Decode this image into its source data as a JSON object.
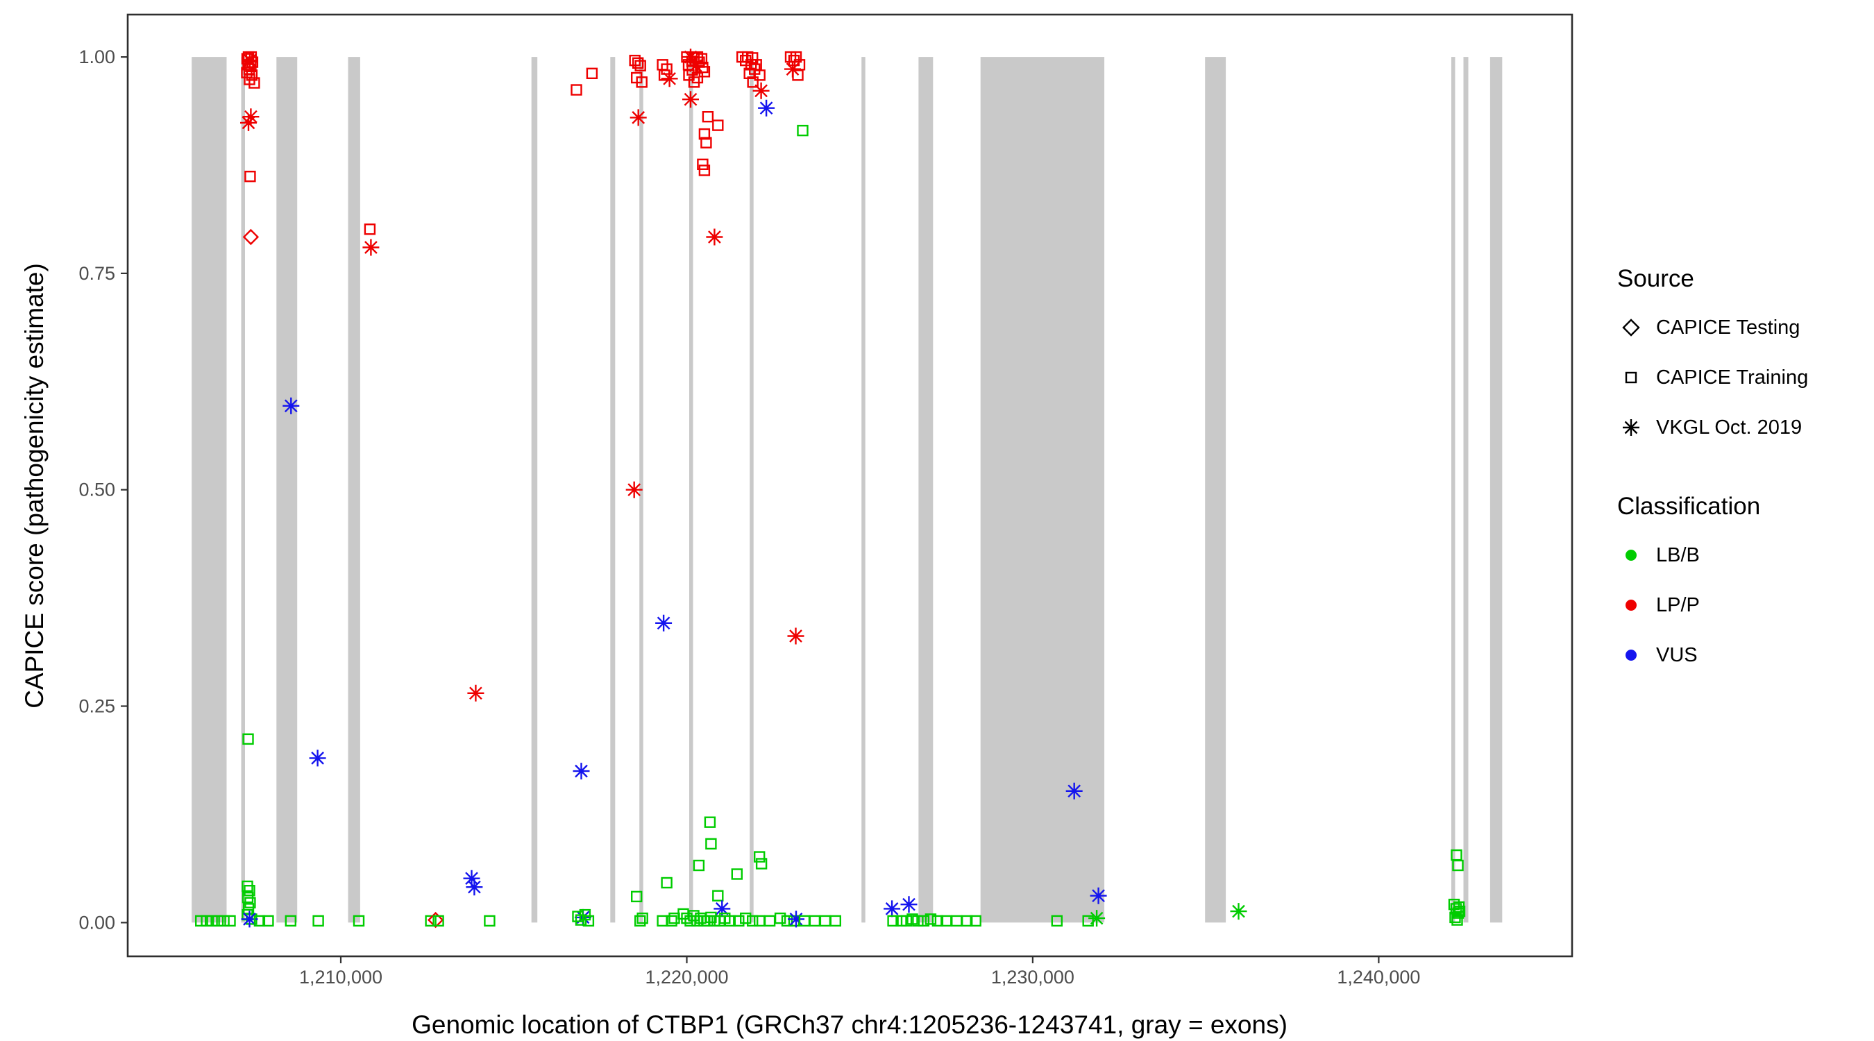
{
  "axes": {
    "x_title": "Genomic location of CTBP1 (GRCh37 chr4:1205236-1243741, gray = exons)",
    "y_title": "CAPICE score (pathogenicity estimate)"
  },
  "legend": {
    "source": {
      "title": "Source",
      "items": [
        {
          "label": "CAPICE Testing",
          "shape": "diamond"
        },
        {
          "label": "CAPICE Training",
          "shape": "square"
        },
        {
          "label": "VKGL Oct. 2019",
          "shape": "asterisk"
        }
      ]
    },
    "classification": {
      "title": "Classification",
      "items": [
        {
          "label": "LB/B",
          "color": "#00CC00"
        },
        {
          "label": "LP/P",
          "color": "#EE0000"
        },
        {
          "label": "VUS",
          "color": "#1414EE"
        }
      ]
    }
  },
  "chart_data": {
    "type": "scatter",
    "title": "",
    "xlabel": "Genomic location of CTBP1 (GRCh37 chr4:1205236-1243741, gray = exons)",
    "ylabel": "CAPICE score (pathogenicity estimate)",
    "xlim": [
      1203840,
      1245590
    ],
    "ylim": [
      -0.039,
      1.049
    ],
    "grid": false,
    "legend_position": "right",
    "panel_border_color": "#2E2E2E",
    "tick_color": "#333333",
    "tick_label_color": "#4D4D4D",
    "exon_color": "#C9C9C9",
    "x_ticks": [
      {
        "value": 1210000,
        "label": "1,210,000"
      },
      {
        "value": 1220000,
        "label": "1,220,000"
      },
      {
        "value": 1230000,
        "label": "1,230,000"
      },
      {
        "value": 1240000,
        "label": "1,240,000"
      }
    ],
    "y_ticks": [
      {
        "value": 0.0,
        "label": "0.00"
      },
      {
        "value": 0.25,
        "label": "0.25"
      },
      {
        "value": 0.5,
        "label": "0.50"
      },
      {
        "value": 0.75,
        "label": "0.75"
      },
      {
        "value": 1.0,
        "label": "1.00"
      }
    ],
    "shapes": {
      "T": "diamond",
      "R": "square",
      "V": "asterisk"
    },
    "shape_meaning": {
      "T": "CAPICE Testing",
      "R": "CAPICE Training",
      "V": "VKGL Oct. 2019"
    },
    "colors": {
      "B": "#00CC00",
      "P": "#EE0000",
      "U": "#1414EE"
    },
    "color_meaning": {
      "B": "LB/B",
      "P": "LP/P",
      "U": "VUS"
    },
    "exons": [
      [
        1205690,
        1206700
      ],
      [
        1207120,
        1207230
      ],
      [
        1208140,
        1208740
      ],
      [
        1210210,
        1210560
      ],
      [
        1215510,
        1215680
      ],
      [
        1217790,
        1217930
      ],
      [
        1218630,
        1218740
      ],
      [
        1220070,
        1220180
      ],
      [
        1221820,
        1221930
      ],
      [
        1225050,
        1225160
      ],
      [
        1226700,
        1227120
      ],
      [
        1228490,
        1232070
      ],
      [
        1234980,
        1235580
      ],
      [
        1242100,
        1242210
      ],
      [
        1242450,
        1242590
      ],
      [
        1243220,
        1243570
      ]
    ],
    "points": [
      [
        1207330,
        1.0,
        "R",
        "P"
      ],
      [
        1207410,
        1.0,
        "R",
        "P"
      ],
      [
        1207290,
        0.998,
        "R",
        "P"
      ],
      [
        1207370,
        0.996,
        "V",
        "P"
      ],
      [
        1207450,
        0.994,
        "R",
        "P"
      ],
      [
        1207320,
        0.991,
        "R",
        "P"
      ],
      [
        1207400,
        0.989,
        "R",
        "P"
      ],
      [
        1207350,
        0.986,
        "R",
        "P"
      ],
      [
        1207280,
        0.982,
        "R",
        "P"
      ],
      [
        1207430,
        0.979,
        "R",
        "P"
      ],
      [
        1207360,
        0.974,
        "R",
        "P"
      ],
      [
        1207500,
        0.97,
        "R",
        "P"
      ],
      [
        1207400,
        0.931,
        "V",
        "P"
      ],
      [
        1207330,
        0.924,
        "V",
        "P"
      ],
      [
        1207380,
        0.862,
        "R",
        "P"
      ],
      [
        1207400,
        0.792,
        "T",
        "P"
      ],
      [
        1207320,
        0.212,
        "R",
        "B"
      ],
      [
        1207300,
        0.042,
        "R",
        "B"
      ],
      [
        1207360,
        0.037,
        "R",
        "B"
      ],
      [
        1207310,
        0.029,
        "R",
        "B"
      ],
      [
        1207380,
        0.023,
        "R",
        "B"
      ],
      [
        1207330,
        0.016,
        "R",
        "B"
      ],
      [
        1207300,
        0.009,
        "R",
        "B"
      ],
      [
        1207420,
        0.004,
        "R",
        "B"
      ],
      [
        1207360,
        0.004,
        "V",
        "U"
      ],
      [
        1205950,
        0.002,
        "R",
        "B"
      ],
      [
        1206120,
        0.002,
        "R",
        "B"
      ],
      [
        1206280,
        0.002,
        "R",
        "B"
      ],
      [
        1206450,
        0.002,
        "R",
        "B"
      ],
      [
        1206620,
        0.002,
        "R",
        "B"
      ],
      [
        1206800,
        0.002,
        "R",
        "B"
      ],
      [
        1207650,
        0.002,
        "R",
        "B"
      ],
      [
        1207900,
        0.002,
        "R",
        "B"
      ],
      [
        1208550,
        0.002,
        "R",
        "B"
      ],
      [
        1209350,
        0.002,
        "R",
        "B"
      ],
      [
        1210520,
        0.002,
        "R",
        "B"
      ],
      [
        1208560,
        0.597,
        "V",
        "U"
      ],
      [
        1209330,
        0.19,
        "V",
        "U"
      ],
      [
        1210840,
        0.801,
        "R",
        "P"
      ],
      [
        1210870,
        0.78,
        "V",
        "P"
      ],
      [
        1212600,
        0.002,
        "R",
        "B"
      ],
      [
        1212740,
        0.003,
        "T",
        "P"
      ],
      [
        1212820,
        0.002,
        "R",
        "B"
      ],
      [
        1214300,
        0.002,
        "R",
        "B"
      ],
      [
        1213780,
        0.051,
        "V",
        "U"
      ],
      [
        1213860,
        0.041,
        "V",
        "U"
      ],
      [
        1213900,
        0.265,
        "V",
        "P"
      ],
      [
        1216810,
        0.962,
        "R",
        "P"
      ],
      [
        1217260,
        0.981,
        "R",
        "P"
      ],
      [
        1216950,
        0.175,
        "V",
        "U"
      ],
      [
        1217000,
        0.006,
        "V",
        "U"
      ],
      [
        1216850,
        0.007,
        "R",
        "B"
      ],
      [
        1216940,
        0.003,
        "R",
        "B"
      ],
      [
        1217060,
        0.009,
        "R",
        "B"
      ],
      [
        1217160,
        0.002,
        "R",
        "B"
      ],
      [
        1218500,
        0.996,
        "R",
        "P"
      ],
      [
        1218590,
        0.993,
        "R",
        "P"
      ],
      [
        1218660,
        0.99,
        "R",
        "P"
      ],
      [
        1218550,
        0.976,
        "R",
        "P"
      ],
      [
        1218700,
        0.971,
        "R",
        "P"
      ],
      [
        1218600,
        0.93,
        "V",
        "P"
      ],
      [
        1218480,
        0.5,
        "V",
        "P"
      ],
      [
        1218550,
        0.03,
        "R",
        "B"
      ],
      [
        1218650,
        0.002,
        "R",
        "B"
      ],
      [
        1218720,
        0.005,
        "R",
        "B"
      ],
      [
        1219300,
        0.991,
        "R",
        "P"
      ],
      [
        1219420,
        0.986,
        "R",
        "P"
      ],
      [
        1219350,
        0.979,
        "R",
        "P"
      ],
      [
        1219500,
        0.975,
        "V",
        "P"
      ],
      [
        1219330,
        0.346,
        "V",
        "U"
      ],
      [
        1219420,
        0.046,
        "R",
        "B"
      ],
      [
        1219300,
        0.002,
        "R",
        "B"
      ],
      [
        1219560,
        0.002,
        "R",
        "B"
      ],
      [
        1219640,
        0.005,
        "R",
        "B"
      ],
      [
        1220000,
        1.0,
        "R",
        "P"
      ],
      [
        1220110,
        1.0,
        "V",
        "P"
      ],
      [
        1220210,
        0.999,
        "R",
        "P"
      ],
      [
        1220310,
        1.0,
        "R",
        "P"
      ],
      [
        1220430,
        0.998,
        "R",
        "P"
      ],
      [
        1220150,
        0.995,
        "R",
        "P"
      ],
      [
        1220360,
        0.994,
        "R",
        "P"
      ],
      [
        1220050,
        0.991,
        "R",
        "P"
      ],
      [
        1220260,
        0.99,
        "V",
        "P"
      ],
      [
        1220460,
        0.988,
        "R",
        "P"
      ],
      [
        1220160,
        0.985,
        "R",
        "P"
      ],
      [
        1220510,
        0.983,
        "R",
        "P"
      ],
      [
        1220060,
        0.979,
        "R",
        "P"
      ],
      [
        1220310,
        0.976,
        "R",
        "P"
      ],
      [
        1220210,
        0.971,
        "R",
        "P"
      ],
      [
        1220110,
        0.951,
        "V",
        "P"
      ],
      [
        1220610,
        0.931,
        "R",
        "P"
      ],
      [
        1220510,
        0.911,
        "R",
        "P"
      ],
      [
        1220560,
        0.901,
        "R",
        "P"
      ],
      [
        1220460,
        0.876,
        "R",
        "P"
      ],
      [
        1220510,
        0.869,
        "R",
        "P"
      ],
      [
        1220800,
        0.792,
        "V",
        "P"
      ],
      [
        1220900,
        0.921,
        "R",
        "P"
      ],
      [
        1221600,
        1.0,
        "R",
        "P"
      ],
      [
        1221760,
        1.0,
        "R",
        "P"
      ],
      [
        1221900,
        0.999,
        "R",
        "P"
      ],
      [
        1221700,
        0.996,
        "R",
        "P"
      ],
      [
        1221860,
        0.991,
        "R",
        "P"
      ],
      [
        1222010,
        0.991,
        "R",
        "P"
      ],
      [
        1221960,
        0.986,
        "R",
        "P"
      ],
      [
        1221810,
        0.981,
        "R",
        "P"
      ],
      [
        1222110,
        0.979,
        "R",
        "P"
      ],
      [
        1221910,
        0.971,
        "R",
        "P"
      ],
      [
        1222150,
        0.961,
        "V",
        "P"
      ],
      [
        1222300,
        0.941,
        "V",
        "U"
      ],
      [
        1223000,
        1.0,
        "R",
        "P"
      ],
      [
        1223160,
        1.0,
        "R",
        "P"
      ],
      [
        1223100,
        0.996,
        "R",
        "P"
      ],
      [
        1223260,
        0.991,
        "R",
        "P"
      ],
      [
        1223060,
        0.986,
        "V",
        "P"
      ],
      [
        1223210,
        0.979,
        "R",
        "P"
      ],
      [
        1223150,
        0.331,
        "V",
        "P"
      ],
      [
        1223350,
        0.915,
        "R",
        "B"
      ],
      [
        1220670,
        0.116,
        "R",
        "B"
      ],
      [
        1220700,
        0.091,
        "R",
        "B"
      ],
      [
        1220350,
        0.066,
        "R",
        "B"
      ],
      [
        1221450,
        0.056,
        "R",
        "B"
      ],
      [
        1222100,
        0.076,
        "R",
        "B"
      ],
      [
        1222160,
        0.068,
        "R",
        "B"
      ],
      [
        1220900,
        0.031,
        "R",
        "B"
      ],
      [
        1221020,
        0.016,
        "V",
        "U"
      ],
      [
        1219900,
        0.01,
        "R",
        "B"
      ],
      [
        1220000,
        0.005,
        "R",
        "B"
      ],
      [
        1220100,
        0.002,
        "R",
        "B"
      ],
      [
        1220200,
        0.008,
        "R",
        "B"
      ],
      [
        1220300,
        0.002,
        "R",
        "B"
      ],
      [
        1220400,
        0.005,
        "R",
        "B"
      ],
      [
        1220500,
        0.002,
        "R",
        "B"
      ],
      [
        1220600,
        0.002,
        "R",
        "B"
      ],
      [
        1220700,
        0.006,
        "R",
        "B"
      ],
      [
        1220800,
        0.002,
        "R",
        "B"
      ],
      [
        1220950,
        0.002,
        "R",
        "B"
      ],
      [
        1221100,
        0.005,
        "R",
        "B"
      ],
      [
        1221250,
        0.002,
        "R",
        "B"
      ],
      [
        1221500,
        0.002,
        "R",
        "B"
      ],
      [
        1221700,
        0.005,
        "R",
        "B"
      ],
      [
        1221900,
        0.002,
        "R",
        "B"
      ],
      [
        1222100,
        0.002,
        "R",
        "B"
      ],
      [
        1222400,
        0.002,
        "R",
        "B"
      ],
      [
        1222700,
        0.005,
        "R",
        "B"
      ],
      [
        1222900,
        0.002,
        "R",
        "B"
      ],
      [
        1223100,
        0.002,
        "R",
        "B"
      ],
      [
        1223160,
        0.004,
        "V",
        "U"
      ],
      [
        1223400,
        0.002,
        "R",
        "B"
      ],
      [
        1223700,
        0.002,
        "R",
        "B"
      ],
      [
        1224000,
        0.002,
        "R",
        "B"
      ],
      [
        1224300,
        0.002,
        "R",
        "B"
      ],
      [
        1225930,
        0.016,
        "V",
        "U"
      ],
      [
        1226420,
        0.021,
        "V",
        "U"
      ],
      [
        1225960,
        0.002,
        "R",
        "B"
      ],
      [
        1226200,
        0.002,
        "R",
        "B"
      ],
      [
        1226350,
        0.002,
        "R",
        "B"
      ],
      [
        1226520,
        0.004,
        "R",
        "B"
      ],
      [
        1226680,
        0.002,
        "R",
        "B"
      ],
      [
        1226850,
        0.002,
        "R",
        "B"
      ],
      [
        1227050,
        0.004,
        "R",
        "B"
      ],
      [
        1227250,
        0.002,
        "R",
        "B"
      ],
      [
        1227500,
        0.002,
        "R",
        "B"
      ],
      [
        1227800,
        0.002,
        "R",
        "B"
      ],
      [
        1228100,
        0.002,
        "R",
        "B"
      ],
      [
        1228350,
        0.002,
        "R",
        "B"
      ],
      [
        1230700,
        0.002,
        "R",
        "B"
      ],
      [
        1231600,
        0.002,
        "R",
        "B"
      ],
      [
        1231200,
        0.152,
        "V",
        "U"
      ],
      [
        1231900,
        0.031,
        "V",
        "U"
      ],
      [
        1231850,
        0.005,
        "V",
        "B"
      ],
      [
        1235950,
        0.013,
        "V",
        "B"
      ],
      [
        1242250,
        0.078,
        "R",
        "B"
      ],
      [
        1242290,
        0.066,
        "R",
        "B"
      ],
      [
        1242180,
        0.021,
        "R",
        "B"
      ],
      [
        1242240,
        0.016,
        "R",
        "B"
      ],
      [
        1242300,
        0.011,
        "R",
        "B"
      ],
      [
        1242210,
        0.006,
        "R",
        "B"
      ],
      [
        1242270,
        0.003,
        "R",
        "B"
      ],
      [
        1242340,
        0.013,
        "R",
        "B"
      ],
      [
        1242320,
        0.018,
        "R",
        "B"
      ]
    ]
  }
}
